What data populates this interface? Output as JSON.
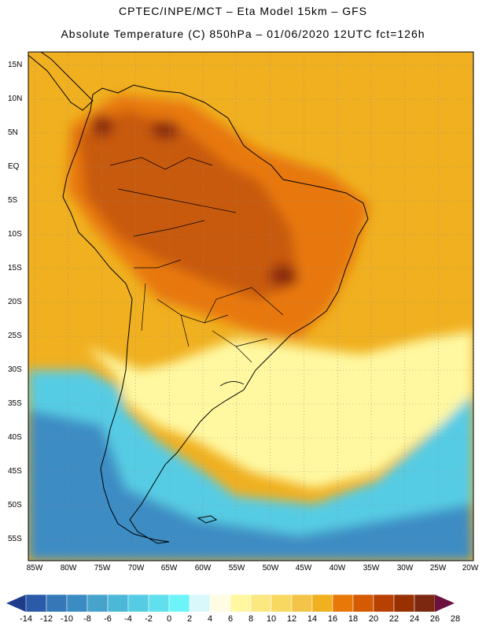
{
  "header": {
    "line1": "CPTEC/INPE/MCT –  Eta Model 15km – GFS",
    "line2": "Absolute Temperature (C) 850hPa – 01/06/2020 12UTC fct=126h"
  },
  "axes": {
    "lat_labels": [
      "15N",
      "10N",
      "5N",
      "EQ",
      "5S",
      "10S",
      "15S",
      "20S",
      "25S",
      "30S",
      "35S",
      "40S",
      "45S",
      "50S",
      "55S"
    ],
    "lon_labels": [
      "85W",
      "80W",
      "75W",
      "70W",
      "65W",
      "60W",
      "55W",
      "50W",
      "45W",
      "40W",
      "35W",
      "30W",
      "25W",
      "20W"
    ]
  },
  "colorbar": {
    "ticks": [
      "-14",
      "-12",
      "-10",
      "-8",
      "-6",
      "-4",
      "-2",
      "0",
      "2",
      "4",
      "6",
      "8",
      "10",
      "12",
      "14",
      "16",
      "18",
      "20",
      "22",
      "24",
      "26",
      "28"
    ],
    "colors": [
      "#1e3c8c",
      "#2a5aa8",
      "#3478b8",
      "#3c8cc4",
      "#46a4cc",
      "#4cb8d8",
      "#56cce4",
      "#60e0ec",
      "#6cf4f8",
      "#d8f8fc",
      "#fffce4",
      "#fff8a0",
      "#fbe880",
      "#f8d860",
      "#f4c448",
      "#f0b020",
      "#e87808",
      "#d45a04",
      "#b84002",
      "#983000",
      "#7c2810",
      "#6c1040"
    ]
  },
  "map_colors": {
    "ocean_tropical": "#f0b020",
    "tropical_land": "#e87808",
    "amazon_core": "#c85a0c",
    "hot_spot": "#8c2c0a",
    "southern_cool": "#fff8a0",
    "ocean_cold": "#56cce4",
    "ocean_very_cold": "#3c8cc4",
    "coast": "#000000",
    "grid": "#8c8c8c"
  }
}
